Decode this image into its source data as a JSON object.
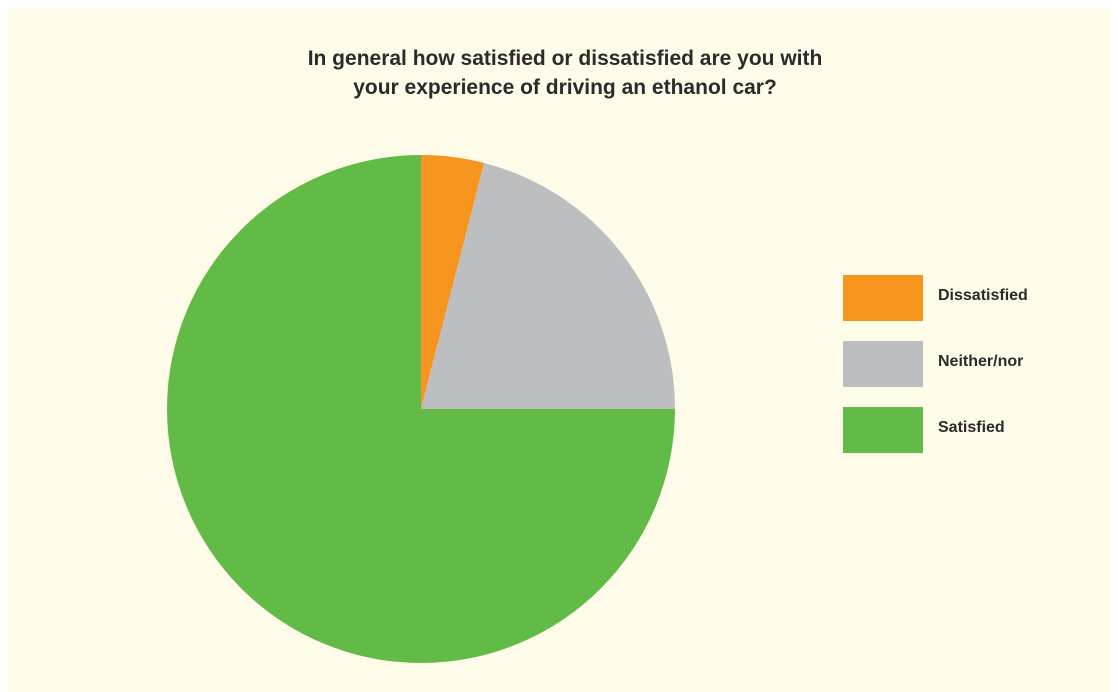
{
  "chart_data": {
    "type": "pie",
    "title_lines": [
      "In general how satisfied or dissatisfied are you with",
      "your experience of driving an ethanol car?"
    ],
    "categories": [
      "Dissatisfied",
      "Neither/nor",
      "Satisfied"
    ],
    "values": [
      4,
      21,
      75
    ],
    "colors": [
      "#f7941d",
      "#bcbec0",
      "#62bb46"
    ],
    "start_angle_deg": 0,
    "direction": "clockwise",
    "legend_position": "right",
    "data_labels": false
  },
  "background_color": "#fefbe8"
}
